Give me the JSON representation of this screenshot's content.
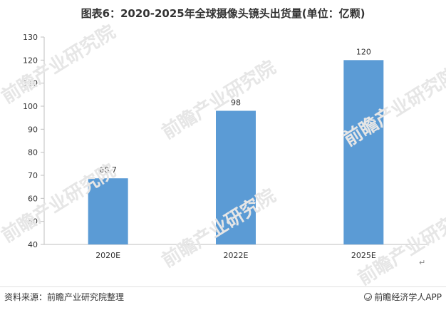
{
  "title": "图表6：2020-2025年全球摄像头镜头出货量(单位：亿颗)",
  "watermark_text": "前瞻产业研究院",
  "source": "资料来源：前瞻产业研究院整理",
  "brand": "前瞻经济学人APP",
  "colors": {
    "bar": "#5b9bd5",
    "axis": "#bfbfbf",
    "grid": "#d9d9d9"
  },
  "chart_data": {
    "type": "bar",
    "title": "图表6：2020-2025年全球摄像头镜头出货量(单位：亿颗)",
    "categories": [
      "2020E",
      "2022E",
      "2025E"
    ],
    "values": [
      68.7,
      98,
      120
    ],
    "value_labels": [
      "68.7",
      "98",
      "120"
    ],
    "xlabel": "",
    "ylabel": "",
    "ylim": [
      40,
      130
    ],
    "yticks": [
      40,
      50,
      60,
      70,
      80,
      90,
      100,
      110,
      120,
      130
    ],
    "grid": false,
    "legend": "none"
  }
}
